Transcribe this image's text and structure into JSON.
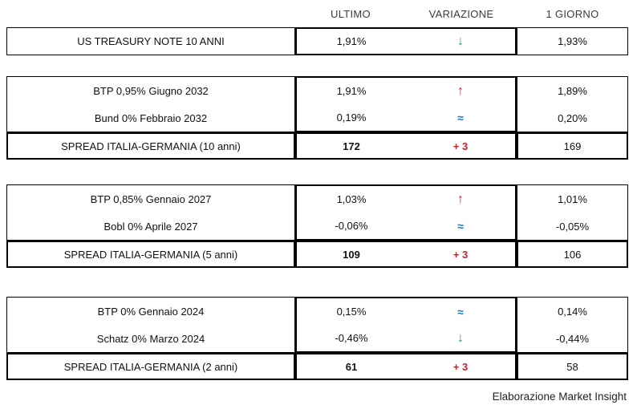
{
  "header": {
    "columns": [
      "ULTIMO",
      "VARIAZIONE",
      "1 GIORNO"
    ]
  },
  "colors": {
    "up": "#c5202e",
    "down": "#2e9e5b",
    "flat": "#0f7dc2",
    "border": "#000000"
  },
  "sections": [
    {
      "rows": [
        {
          "label": "US TREASURY NOTE 10 ANNI",
          "ultimo": "1,91%",
          "symbol": "↓",
          "dir": "down",
          "giorno": "1,93%"
        }
      ]
    },
    {
      "rows": [
        {
          "label": "BTP 0,95% Giugno 2032",
          "ultimo": "1,91%",
          "symbol": "↑",
          "dir": "up",
          "giorno": "1,89%"
        },
        {
          "label": "Bund 0% Febbraio 2032",
          "ultimo": "0,19%",
          "symbol": "≈",
          "dir": "flat",
          "giorno": "0,20%"
        }
      ],
      "spread": {
        "label": "SPREAD ITALIA-GERMANIA (10 anni)",
        "value": "172",
        "change": "+ 3",
        "giorno": "169"
      }
    },
    {
      "rows": [
        {
          "label": "BTP 0,85% Gennaio 2027",
          "ultimo": "1,03%",
          "symbol": "↑",
          "dir": "up",
          "giorno": "1,01%"
        },
        {
          "label": "Bobl 0% Aprile 2027",
          "ultimo": "-0,06%",
          "symbol": "≈",
          "dir": "flat",
          "giorno": "-0,05%"
        }
      ],
      "spread": {
        "label": "SPREAD ITALIA-GERMANIA (5 anni)",
        "value": "109",
        "change": "+ 3",
        "giorno": "106"
      }
    },
    {
      "rows": [
        {
          "label": "BTP 0% Gennaio 2024",
          "ultimo": "0,15%",
          "symbol": "≈",
          "dir": "flat",
          "giorno": "0,14%"
        },
        {
          "label": "Schatz 0% Marzo 2024",
          "ultimo": "-0,46%",
          "symbol": "↓",
          "dir": "down",
          "giorno": "-0,44%"
        }
      ],
      "spread": {
        "label": "SPREAD ITALIA-GERMANIA (2 anni)",
        "value": "61",
        "change": "+ 3",
        "giorno": "58"
      }
    }
  ],
  "footer": {
    "credit": "Elaborazione Market Insight"
  }
}
